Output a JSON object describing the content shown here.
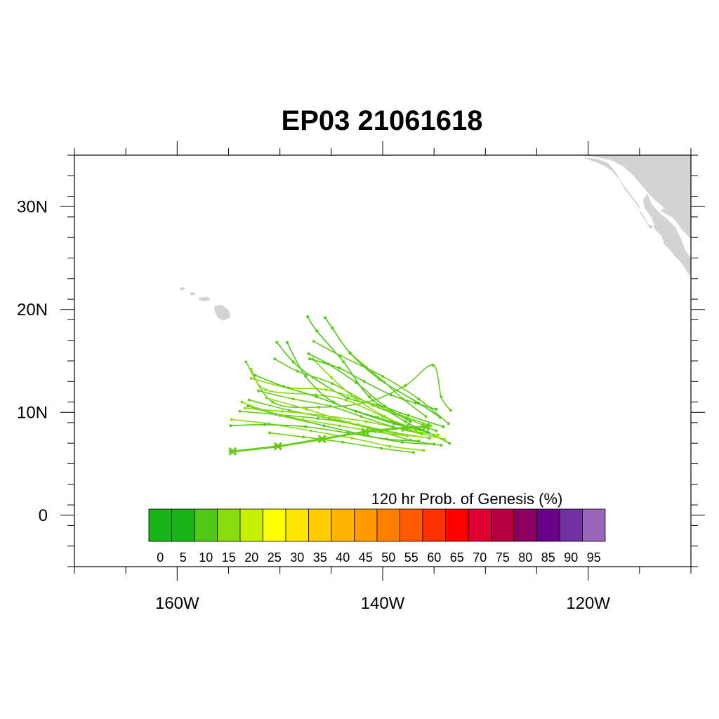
{
  "title": "EP03 21061618",
  "map": {
    "lon_range": [
      -170,
      -110
    ],
    "lat_range": [
      -5,
      35
    ],
    "land_color": "#d3d3d3",
    "x_ticks": [
      {
        "lon": -160,
        "label": "160W"
      },
      {
        "lon": -140,
        "label": "140W"
      },
      {
        "lon": -120,
        "label": "120W"
      }
    ],
    "y_ticks": [
      {
        "lat": 30,
        "label": "30N"
      },
      {
        "lat": 20,
        "label": "20N"
      },
      {
        "lat": 10,
        "label": "10N"
      },
      {
        "lat": 0,
        "label": "0"
      }
    ]
  },
  "colorbar": {
    "title": "120 hr Prob. of Genesis (%)",
    "labels": [
      "0",
      "5",
      "10",
      "15",
      "20",
      "25",
      "30",
      "35",
      "40",
      "45",
      "50",
      "55",
      "60",
      "65",
      "70",
      "75",
      "80",
      "85",
      "90",
      "95"
    ],
    "colors": [
      "#17b317",
      "#17b317",
      "#4fc714",
      "#88dc0d",
      "#c4f000",
      "#ffff00",
      "#ffe600",
      "#ffcc00",
      "#ffb300",
      "#ff9900",
      "#ff8000",
      "#ff5a00",
      "#ff3300",
      "#ff0000",
      "#dd0030",
      "#b80040",
      "#8b005e",
      "#6a0087",
      "#7030a0",
      "#9966bb"
    ]
  },
  "tracks": [
    {
      "color": "#66cc1a",
      "points": [
        [
          -133.4,
          10.2
        ],
        [
          -134.3,
          11.5
        ],
        [
          -135.1,
          14.6
        ],
        [
          -137.8,
          12.6
        ],
        [
          -141.5,
          11.0
        ],
        [
          -146.2,
          10.5
        ],
        [
          -150.7,
          11.0
        ],
        [
          -153.3,
          14.9
        ]
      ]
    },
    {
      "color": "#4fc714",
      "points": [
        [
          -133.5,
          7.0
        ],
        [
          -135.5,
          8.0
        ],
        [
          -137.8,
          9.1
        ],
        [
          -141.3,
          11.5
        ],
        [
          -143.8,
          14.9
        ],
        [
          -146.4,
          17.9
        ],
        [
          -147.3,
          19.3
        ]
      ]
    },
    {
      "color": "#66cc1a",
      "points": [
        [
          -133.6,
          8.9
        ],
        [
          -136.5,
          11.3
        ],
        [
          -140.0,
          13.5
        ],
        [
          -144.1,
          15.5
        ],
        [
          -146.7,
          16.9
        ]
      ]
    },
    {
      "color": "#88dc0d",
      "points": [
        [
          -134.0,
          7.4
        ],
        [
          -136.7,
          8.1
        ],
        [
          -140.0,
          9.6
        ],
        [
          -143.6,
          11.2
        ],
        [
          -146.5,
          11.7
        ],
        [
          -151.4,
          12.2
        ],
        [
          -152.8,
          14.2
        ]
      ]
    },
    {
      "color": "#4fc714",
      "points": [
        [
          -134.1,
          8.6
        ],
        [
          -137.5,
          9.7
        ],
        [
          -140.4,
          10.7
        ],
        [
          -143.4,
          11.4
        ],
        [
          -146.8,
          13.4
        ],
        [
          -148.7,
          14.9
        ],
        [
          -150.3,
          16.8
        ]
      ]
    },
    {
      "color": "#66cc1a",
      "points": [
        [
          -134.3,
          6.8
        ],
        [
          -137.3,
          7.3
        ],
        [
          -141.1,
          8.4
        ],
        [
          -145.2,
          9.4
        ],
        [
          -149.1,
          10.2
        ],
        [
          -153.0,
          11.2
        ]
      ]
    },
    {
      "color": "#4fc714",
      "points": [
        [
          -134.4,
          9.5
        ],
        [
          -136.5,
          10.9
        ],
        [
          -140.3,
          13.2
        ],
        [
          -143.2,
          15.8
        ],
        [
          -144.9,
          18.2
        ],
        [
          -145.6,
          19.2
        ]
      ]
    },
    {
      "color": "#88dc0d",
      "points": [
        [
          -134.6,
          7.8
        ],
        [
          -137.7,
          8.3
        ],
        [
          -141.6,
          9.1
        ],
        [
          -145.8,
          9.7
        ],
        [
          -149.8,
          10.1
        ],
        [
          -153.4,
          10.4
        ]
      ]
    },
    {
      "color": "#66cc1a",
      "points": [
        [
          -134.8,
          8.2
        ],
        [
          -137.6,
          9.4
        ],
        [
          -141.0,
          10.7
        ],
        [
          -144.9,
          12.8
        ],
        [
          -148.3,
          14.0
        ],
        [
          -150.5,
          15.2
        ]
      ]
    },
    {
      "color": "#4fc714",
      "points": [
        [
          -135.0,
          6.9
        ],
        [
          -138.1,
          7.1
        ],
        [
          -141.8,
          7.8
        ],
        [
          -145.7,
          8.7
        ],
        [
          -150.0,
          9.7
        ],
        [
          -153.1,
          10.6
        ]
      ]
    },
    {
      "color": "#88dc0d",
      "points": [
        [
          -135.3,
          8.7
        ],
        [
          -138.4,
          9.8
        ],
        [
          -141.5,
          11.0
        ],
        [
          -145.5,
          12.2
        ],
        [
          -149.2,
          12.4
        ],
        [
          -152.8,
          13.3
        ]
      ]
    },
    {
      "color": "#66cc1a",
      "points": [
        [
          -135.5,
          7.5
        ],
        [
          -138.7,
          8.0
        ],
        [
          -142.4,
          8.8
        ],
        [
          -146.3,
          9.4
        ],
        [
          -150.4,
          9.8
        ],
        [
          -153.9,
          10.1
        ]
      ]
    },
    {
      "color": "#4fc714",
      "points": [
        [
          -135.7,
          8.1
        ],
        [
          -138.9,
          8.9
        ],
        [
          -142.6,
          10.1
        ],
        [
          -146.4,
          11.5
        ],
        [
          -149.6,
          12.5
        ],
        [
          -152.4,
          13.6
        ]
      ]
    },
    {
      "color": "#88dc0d",
      "points": [
        [
          -136.0,
          6.3
        ],
        [
          -139.3,
          6.7
        ],
        [
          -143.0,
          7.5
        ],
        [
          -147.0,
          8.2
        ],
        [
          -151.1,
          8.9
        ],
        [
          -154.7,
          9.3
        ]
      ]
    },
    {
      "color": "#66cc1a",
      "points": [
        [
          -136.2,
          7.9
        ],
        [
          -139.0,
          8.6
        ],
        [
          -142.1,
          9.6
        ],
        [
          -145.1,
          10.6
        ],
        [
          -148.7,
          11.3
        ],
        [
          -152.1,
          12.1
        ]
      ]
    },
    {
      "color": "#4fc714",
      "points": [
        [
          -136.5,
          7.2
        ],
        [
          -139.6,
          7.4
        ],
        [
          -143.4,
          8.0
        ],
        [
          -147.5,
          8.6
        ],
        [
          -151.5,
          8.8
        ],
        [
          -154.8,
          8.7
        ]
      ]
    },
    {
      "color": "#88dc0d",
      "points": [
        [
          -136.8,
          8.3
        ],
        [
          -139.8,
          9.6
        ],
        [
          -142.7,
          11.4
        ],
        [
          -145.0,
          13.4
        ],
        [
          -146.8,
          15.2
        ]
      ]
    },
    {
      "color": "#66cc1a",
      "points": [
        [
          -137.0,
          6.1
        ],
        [
          -140.1,
          6.5
        ],
        [
          -143.9,
          7.1
        ],
        [
          -147.7,
          7.6
        ],
        [
          -151.0,
          8.0
        ]
      ]
    },
    {
      "color": "#4fc714",
      "points": [
        [
          -137.3,
          9.1
        ],
        [
          -139.8,
          10.6
        ],
        [
          -142.6,
          12.9
        ],
        [
          -145.3,
          14.7
        ],
        [
          -147.2,
          15.7
        ]
      ]
    },
    {
      "color": "#88dc0d",
      "points": [
        [
          -137.6,
          7.7
        ],
        [
          -140.7,
          8.1
        ],
        [
          -144.2,
          8.7
        ],
        [
          -147.8,
          9.3
        ],
        [
          -151.2,
          10.1
        ],
        [
          -153.7,
          11.0
        ]
      ]
    },
    {
      "color": "#4fc714",
      "points": [
        [
          -134.8,
          10.3
        ],
        [
          -136.8,
          10.9
        ],
        [
          -139.2,
          11.7
        ],
        [
          -141.8,
          13.0
        ],
        [
          -144.2,
          14.3
        ],
        [
          -147.1,
          15.2
        ]
      ]
    },
    {
      "color": "#66cc1a",
      "points": [
        [
          -135.8,
          9.6
        ],
        [
          -138.0,
          11.3
        ],
        [
          -139.8,
          12.9
        ],
        [
          -141.6,
          14.4
        ],
        [
          -143.1,
          15.7
        ]
      ]
    },
    {
      "color": "#4fc714",
      "points": [
        [
          -136.3,
          8.3
        ],
        [
          -140.5,
          9.5
        ],
        [
          -144.8,
          11.0
        ],
        [
          -147.5,
          13.5
        ],
        [
          -149.3,
          16.8
        ]
      ]
    },
    {
      "color": "#88dc0d",
      "points": [
        [
          -135.4,
          7.5
        ],
        [
          -139.0,
          8.0
        ],
        [
          -143.2,
          9.0
        ],
        [
          -147.4,
          10.3
        ],
        [
          -151.3,
          11.4
        ]
      ]
    }
  ],
  "main_track": {
    "color": "#66cc1a",
    "points": [
      [
        -135.8,
        8.6
      ],
      [
        -137.8,
        8.5
      ],
      [
        -141.7,
        8.1
      ],
      [
        -145.9,
        7.4
      ],
      [
        -150.2,
        6.7
      ],
      [
        -154.6,
        6.2
      ]
    ]
  }
}
